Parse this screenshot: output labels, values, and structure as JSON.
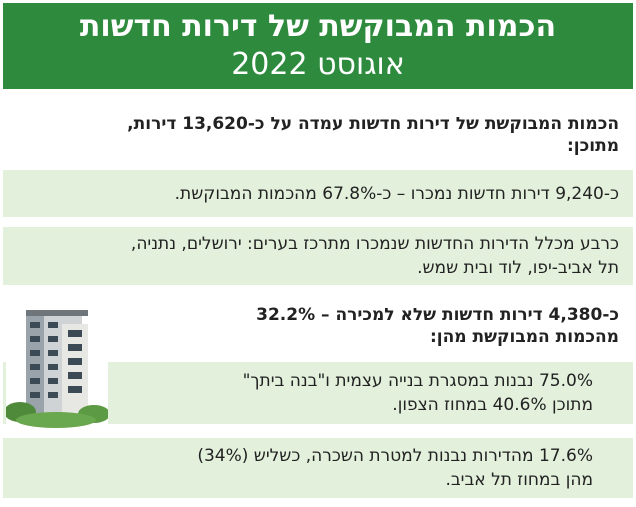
{
  "header": {
    "title": "הכמות המבוקשת של דירות חדשות",
    "subtitle": "אוגוסט 2022"
  },
  "items": [
    {
      "text_line1": "הכמות המבוקשת של דירות חדשות עמדה על כ-13,620 דירות,",
      "text_line2": "מתוכן:"
    },
    {
      "text_line1": "כ-9,240 דירות חדשות נמכרו – כ-67.8% מהכמות המבוקשת.",
      "text_line2": ""
    },
    {
      "text_line1": "כרבע מכלל הדירות החדשות שנמכרו מתרכז בערים: ירושלים, נתניה,",
      "text_line2": "תל אביב-יפו, לוד ובית שמש."
    },
    {
      "text_line1": "כ-4,380 דירות חדשות שלא למכירה – 32.2%",
      "text_line2": "מהכמות המבוקשת מהן:"
    },
    {
      "text_line1": "75.0% נבנות במסגרת בנייה עצמית ו\"בנה ביתך\"",
      "text_line2": "מתוכן 40.6% במחוז הצפון."
    },
    {
      "text_line1": "17.6% מהדירות נבנות למטרת השכרה, כשליש (34%)",
      "text_line2": "מהן במחוז תל אביב."
    }
  ],
  "colors": {
    "header_bg": "#2e8b3e",
    "box_green": "#e2f0dc",
    "text": "#222222"
  }
}
